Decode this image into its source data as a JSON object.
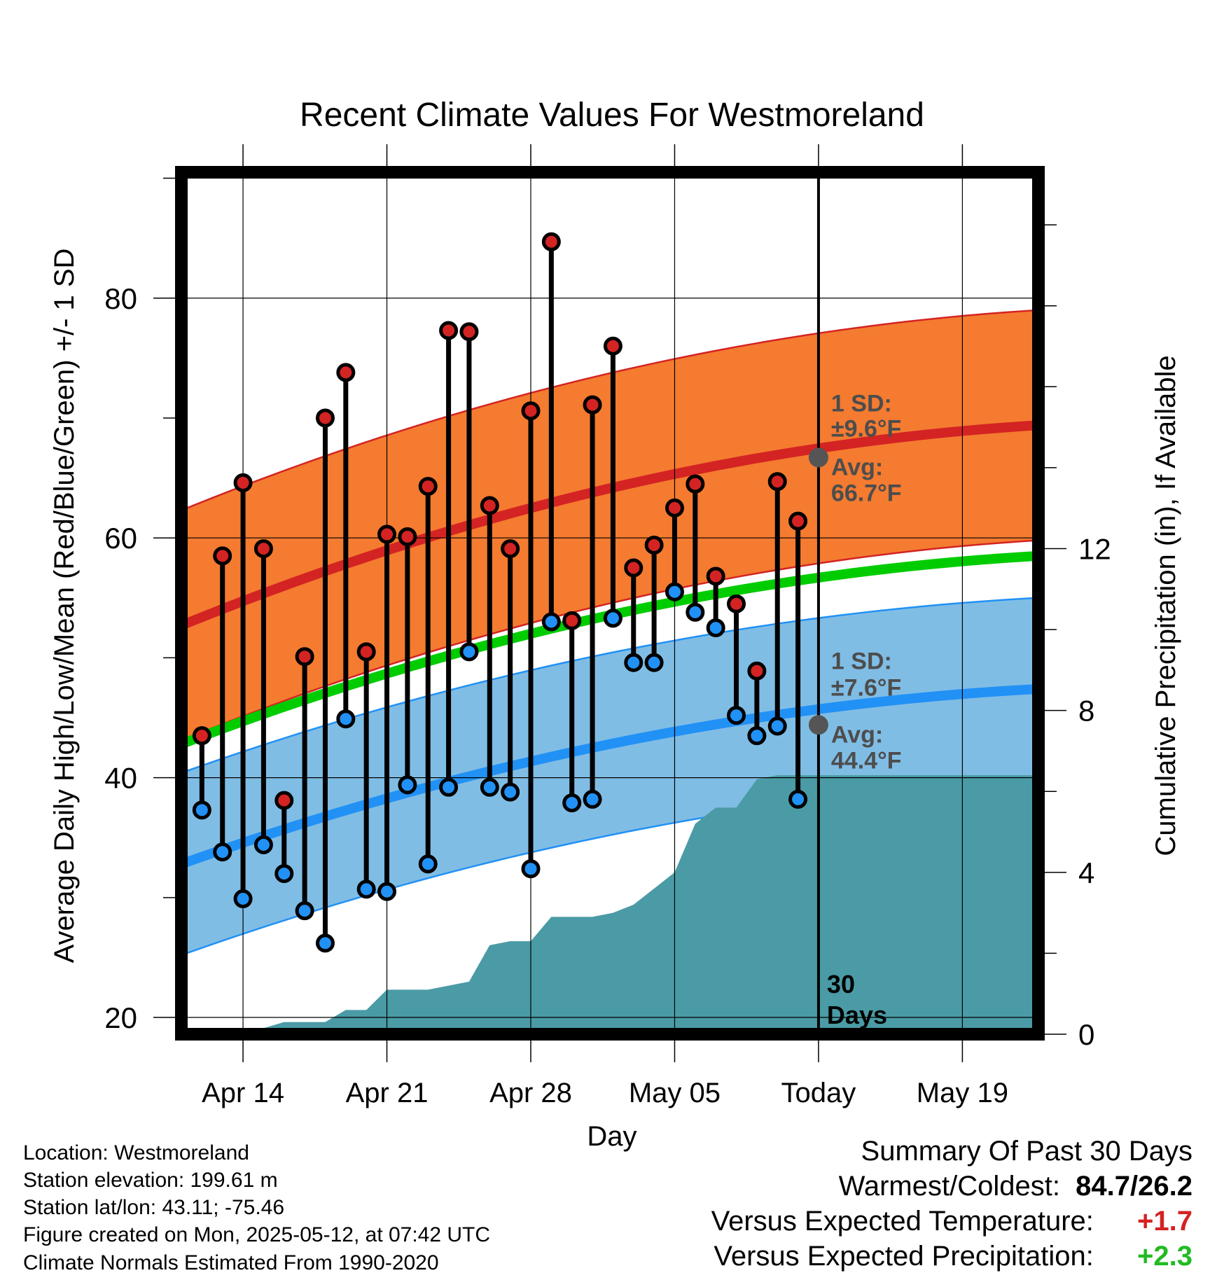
{
  "chart_data": {
    "type": "line",
    "title": "Recent Climate Values For Westmoreland",
    "xlabel": "Day",
    "ylabel_left": "Average Daily High/Low/Mean (Red/Blue/Green) +/- 1 SD",
    "ylabel_right": "Cumulative Precipitation (in), If Available",
    "x_ticks": [
      "Apr 14",
      "Apr 21",
      "Apr 28",
      "May 05",
      "Today",
      "May 19"
    ],
    "x_tick_days": [
      3,
      10,
      17,
      24,
      31,
      38
    ],
    "x_range_days": [
      0,
      41.7
    ],
    "y_left_range": [
      18.6,
      90.5
    ],
    "y_left_ticks": [
      20,
      40,
      60,
      80
    ],
    "y_right_range": [
      0,
      21.3
    ],
    "y_right_ticks": [
      0,
      4,
      8,
      12
    ],
    "grid": true,
    "days": [
      1,
      2,
      3,
      4,
      5,
      6,
      7,
      8,
      9,
      10,
      11,
      12,
      13,
      14,
      15,
      16,
      17,
      18,
      19,
      20,
      21,
      22,
      23,
      24,
      25,
      26,
      27,
      28,
      29,
      30
    ],
    "highs": [
      43.5,
      58.5,
      64.6,
      59.1,
      38.1,
      50.1,
      70.0,
      73.8,
      50.5,
      60.3,
      60.1,
      64.3,
      77.3,
      77.2,
      62.7,
      59.1,
      70.6,
      84.7,
      53.1,
      71.1,
      76.0,
      57.5,
      59.4,
      62.5,
      64.5,
      56.8,
      54.5,
      48.9,
      64.7,
      61.4
    ],
    "lows": [
      37.3,
      33.8,
      29.9,
      34.4,
      32.0,
      28.9,
      26.2,
      44.9,
      30.7,
      30.5,
      39.4,
      32.8,
      39.2,
      50.5,
      39.2,
      38.8,
      32.4,
      53.0,
      37.9,
      38.2,
      53.3,
      49.6,
      49.6,
      55.5,
      53.8,
      52.5,
      45.2,
      43.5,
      44.3,
      38.2
    ],
    "normal_high": {
      "start": 52.7,
      "today": 66.7,
      "end": 69.4,
      "sd": 9.6
    },
    "normal_low": {
      "start": 32.8,
      "today": 44.4,
      "end": 47.4,
      "sd": 7.6
    },
    "normal_mean": {
      "start": 42.8,
      "end": 58.5
    },
    "precip_cumulative": {
      "days": [
        3,
        5,
        7,
        8,
        9,
        10,
        11,
        12,
        13,
        14,
        15,
        16,
        17,
        18,
        19,
        20,
        21,
        22,
        23,
        24,
        25,
        26,
        27,
        28,
        29,
        30,
        31,
        42
      ],
      "values": [
        0.0,
        0.3,
        0.3,
        0.6,
        0.6,
        1.1,
        1.1,
        1.1,
        1.2,
        1.3,
        2.2,
        2.3,
        2.3,
        2.9,
        2.9,
        2.9,
        3.0,
        3.2,
        3.6,
        4.0,
        5.2,
        5.6,
        5.6,
        6.3,
        6.4,
        6.4,
        6.4,
        6.4
      ]
    },
    "annotations": {
      "high_sd_label_1": "1 SD:",
      "high_sd_label_2": "±9.6°F",
      "high_avg_label_1": "Avg:",
      "high_avg_label_2": "66.7°F",
      "low_sd_label_1": "1 SD:",
      "low_sd_label_2": "±7.6°F",
      "low_avg_label_1": "Avg:",
      "low_avg_label_2": "44.4°F",
      "days_label_1": "30",
      "days_label_2": "Days"
    },
    "colors": {
      "high_band": "#F47B30",
      "high_line": "#D42323",
      "low_band": "#80BDE5",
      "low_line": "#2191F5",
      "mean_line": "#00CC00",
      "precip": "#4A9BA5",
      "high_dot": "#D42323",
      "low_dot": "#2191F5",
      "annotation": "#4D4D4D"
    }
  },
  "info": {
    "location": "Location: Westmoreland",
    "elevation": "Station elevation: 199.61 m",
    "latlon": "Station lat/lon: 43.11; -75.46",
    "created": "Figure created on Mon, 2025-05-12, at 07:42 UTC",
    "normals": "Climate Normals Estimated From 1990-2020"
  },
  "summary": {
    "title": "Summary Of Past 30 Days",
    "warmest_label": "Warmest/Coldest:",
    "warmest_value": "84.7/26.2",
    "temp_label": "Versus Expected Temperature:",
    "temp_value": "+1.7",
    "temp_color": "#D42323",
    "precip_label": "Versus Expected Precipitation:",
    "precip_value": "+2.3",
    "precip_color": "#22BB22"
  }
}
